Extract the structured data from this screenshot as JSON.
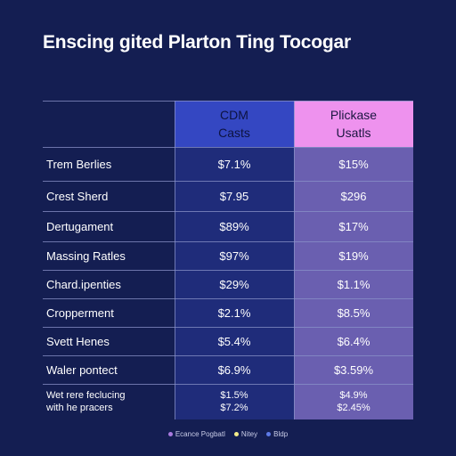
{
  "title": "Enscing gited Plarton Ting Tocogar",
  "headers": {
    "cdm": [
      "CDM",
      "Casts"
    ],
    "pick": [
      "Plickase",
      "Usatls"
    ]
  },
  "rows": [
    {
      "label": "Trem Berlies",
      "v1": "$7.1%",
      "v2": "$15%"
    },
    {
      "label": "Crest Sherd",
      "v1": "$7.95",
      "v2": "$296"
    },
    {
      "label": "Dertugament",
      "v1": "$89%",
      "v2": "$17%"
    },
    {
      "label": "Massing Ratles",
      "v1": "$97%",
      "v2": "$19%"
    },
    {
      "label": "Chard.ipenties",
      "v1": "$29%",
      "v2": "$1.1%"
    },
    {
      "label": "Cropperment",
      "v1": "$2.1%",
      "v2": "$8.5%"
    },
    {
      "label": "Svett Henes",
      "v1": "$5.4%",
      "v2": "$6.4%"
    },
    {
      "label": "Waler pontect",
      "v1": "$6.9%",
      "v2": "$3.59%"
    },
    {
      "label": [
        "Wet rere feclucing",
        "with he pracers"
      ],
      "v1": [
        "$1.5%",
        "$7.2%"
      ],
      "v2": [
        "$4.9%",
        "$2.45%"
      ]
    }
  ],
  "legend": [
    {
      "label": "Ecance Pogbatl",
      "color": "#a97ae0"
    },
    {
      "label": "Nitey",
      "color": "#f3ec8a"
    },
    {
      "label": "Bldp",
      "color": "#5d79e6"
    }
  ]
}
